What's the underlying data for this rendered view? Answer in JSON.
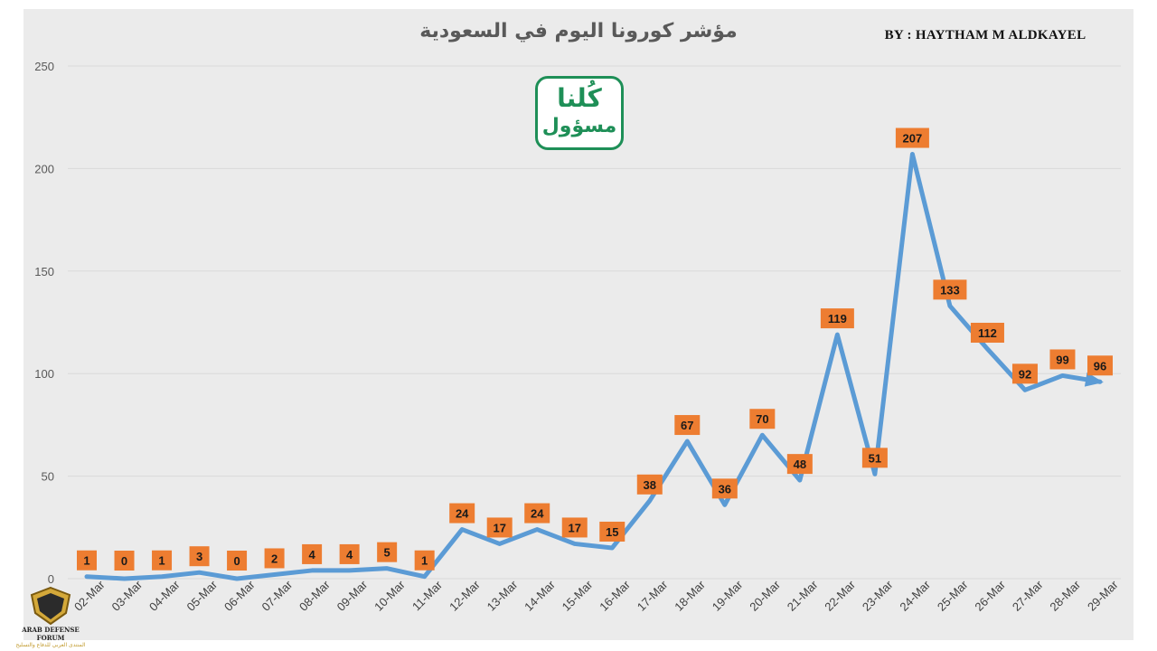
{
  "header": {
    "title": "مؤشر كورونا اليوم في السعودية",
    "byline": "BY : HAYTHAM M ALDKAYEL"
  },
  "logo": {
    "line1": "كُلنا",
    "line2": "مسؤول",
    "color": "#1e8f57"
  },
  "watermark": {
    "title": "ARAB DEFENSE FORUM",
    "subtitle": "المنتدى العربي للدفاع والتسليح"
  },
  "colors": {
    "line": "#5b9bd5",
    "label_bg": "#ed7d31",
    "grid": "#d9d9d9",
    "axis_text": "#595959"
  },
  "chart_data": {
    "type": "line",
    "title": "مؤشر كورونا اليوم في السعودية",
    "xlabel": "",
    "ylabel": "",
    "ylim": [
      0,
      250
    ],
    "yticks": [
      0,
      50,
      100,
      150,
      200,
      250
    ],
    "grid": true,
    "categories": [
      "02-Mar",
      "03-Mar",
      "04-Mar",
      "05-Mar",
      "06-Mar",
      "07-Mar",
      "08-Mar",
      "09-Mar",
      "10-Mar",
      "11-Mar",
      "12-Mar",
      "13-Mar",
      "14-Mar",
      "15-Mar",
      "16-Mar",
      "17-Mar",
      "18-Mar",
      "19-Mar",
      "20-Mar",
      "21-Mar",
      "22-Mar",
      "23-Mar",
      "24-Mar",
      "25-Mar",
      "26-Mar",
      "27-Mar",
      "28-Mar",
      "29-Mar"
    ],
    "series": [
      {
        "values": [
          1,
          0,
          1,
          3,
          0,
          2,
          4,
          4,
          5,
          1,
          24,
          17,
          24,
          17,
          15,
          38,
          67,
          36,
          70,
          48,
          119,
          51,
          207,
          133,
          112,
          92,
          99,
          96
        ]
      }
    ]
  }
}
